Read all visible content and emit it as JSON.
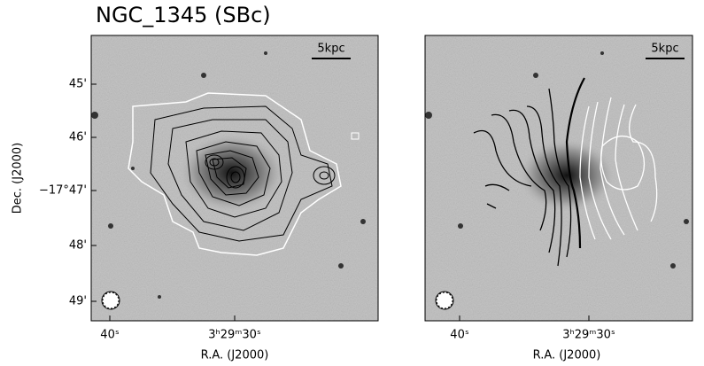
{
  "header": {
    "title": "NGC_1345 (SBc)"
  },
  "panels": [
    {
      "scale_bar": "5kpc",
      "x_label": "R.A. (J2000)",
      "x_ticks": [
        "40ˢ",
        "3ʰ29ᵐ30ˢ"
      ],
      "y_label": "Dec. (J2000)",
      "y_ticks": [
        "45'",
        "46'",
        "−17°47'",
        "48'",
        "49'"
      ]
    },
    {
      "scale_bar": "5kpc",
      "x_label": "R.A. (J2000)",
      "x_ticks": [
        "40ˢ",
        "3ʰ29ᵐ30ˢ"
      ]
    }
  ]
}
